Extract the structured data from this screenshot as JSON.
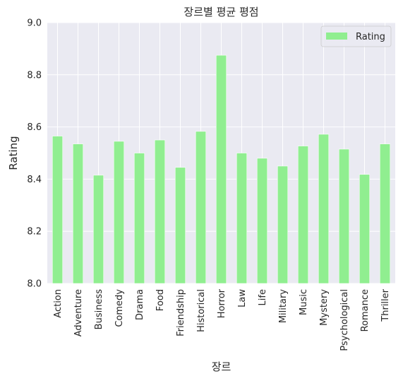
{
  "chart_data": {
    "type": "bar",
    "title": "장르별 평균 평점",
    "xlabel": "장르",
    "ylabel": "Rating",
    "categories": [
      "Action",
      "Adventure",
      "Business",
      "Comedy",
      "Drama",
      "Food",
      "Friendship",
      "Historical",
      "Horror",
      "Law",
      "Life",
      "Military",
      "Music",
      "Mystery",
      "Psychological",
      "Romance",
      "Thriller"
    ],
    "series": [
      {
        "name": "Rating",
        "values": [
          8.565,
          8.535,
          8.415,
          8.545,
          8.5,
          8.55,
          8.445,
          8.583,
          8.875,
          8.5,
          8.48,
          8.45,
          8.527,
          8.572,
          8.515,
          8.418,
          8.535
        ]
      }
    ],
    "ylim": [
      8.0,
      9.0
    ],
    "yticks": [
      "8.0",
      "8.2",
      "8.4",
      "8.6",
      "8.8",
      "9.0"
    ],
    "grid": true,
    "legend_position": "top-right",
    "colors": {
      "bar": "#90ee90",
      "plot_bg": "#eaeaf2",
      "grid": "#ffffff"
    }
  }
}
